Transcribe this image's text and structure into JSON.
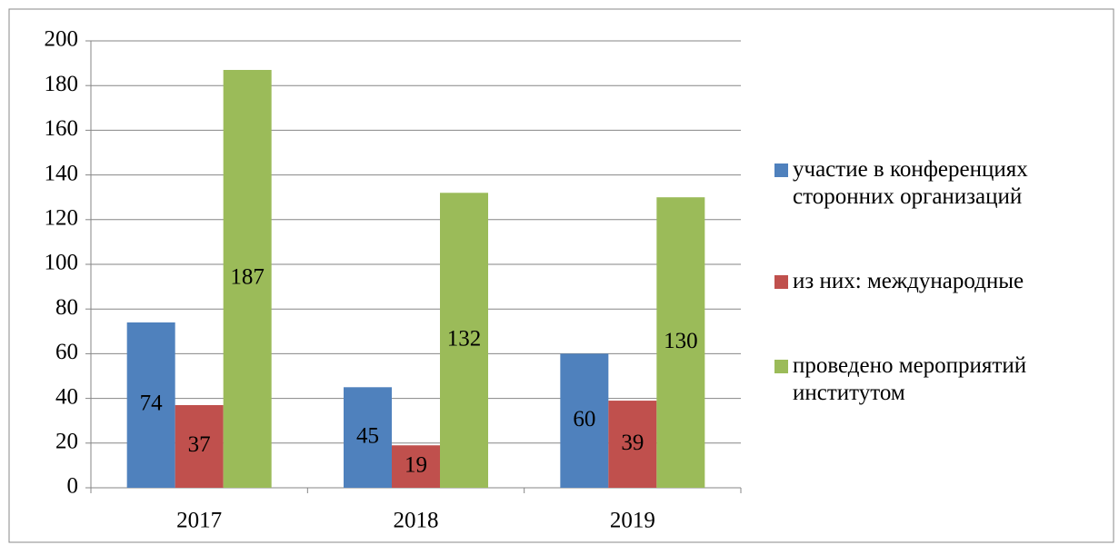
{
  "chart_data": {
    "type": "bar",
    "categories": [
      "2017",
      "2018",
      "2019"
    ],
    "series": [
      {
        "name": "участие в конференциях сторонних организаций",
        "color": "#4f81bd",
        "values": [
          74,
          45,
          60
        ]
      },
      {
        "name": "из них: международные",
        "color": "#c0504d",
        "values": [
          37,
          19,
          39
        ]
      },
      {
        "name": "проведено мероприятий институтом",
        "color": "#9bbb59",
        "values": [
          187,
          132,
          130
        ]
      }
    ],
    "ylim": [
      0,
      200
    ],
    "yticks": [
      0,
      20,
      40,
      60,
      80,
      100,
      120,
      140,
      160,
      180,
      200
    ],
    "grid": true,
    "legend": "right",
    "data_labels": true
  }
}
